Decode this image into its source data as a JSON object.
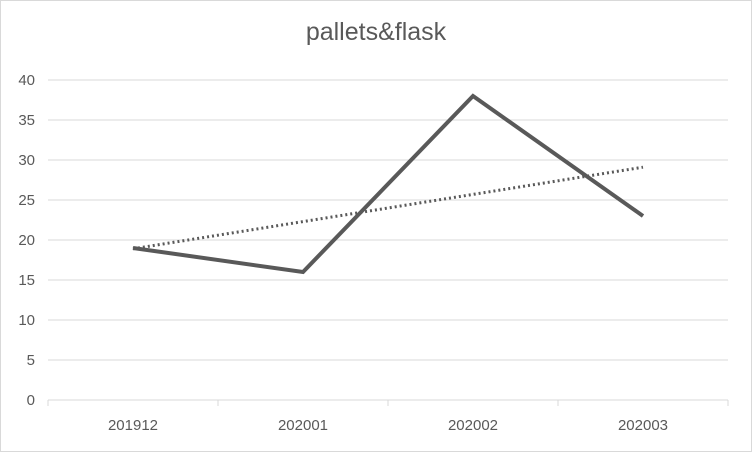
{
  "chart_data": {
    "type": "line",
    "title": "pallets&flask",
    "categories": [
      "201912",
      "202001",
      "202002",
      "202003"
    ],
    "series": [
      {
        "values": [
          19,
          16,
          38,
          23
        ],
        "color": "#595959",
        "style": "solid"
      }
    ],
    "trendline": {
      "type": "linear",
      "style": "dotted",
      "color": "#595959"
    },
    "ylim": [
      0,
      40
    ],
    "yticks": [
      0,
      5,
      10,
      15,
      20,
      25,
      30,
      35,
      40
    ],
    "grid": true,
    "legend": "none"
  }
}
